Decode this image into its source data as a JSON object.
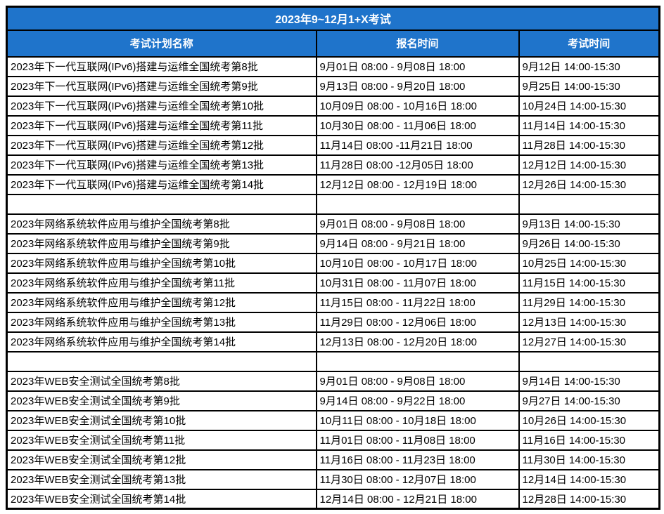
{
  "title": "2023年9~12月1+X考试",
  "columns": {
    "plan_name": "考试计划名称",
    "registration_time": "报名时间",
    "exam_time": "考试时间"
  },
  "colors": {
    "header_bg": "#1F74CB",
    "header_text": "#FFFFFF",
    "border": "#000000",
    "cell_bg": "#FFFFFF",
    "cell_text": "#000000"
  },
  "rows": [
    {
      "name": "2023年下一代互联网(IPv6)搭建与运维全国统考第8批",
      "reg": "9月01日 08:00 - 9月08日 18:00",
      "exam": "9月12日 14:00-15:30"
    },
    {
      "name": "2023年下一代互联网(IPv6)搭建与运维全国统考第9批",
      "reg": "9月13日 08:00 - 9月20日 18:00",
      "exam": "9月25日 14:00-15:30"
    },
    {
      "name": "2023年下一代互联网(IPv6)搭建与运维全国统考第10批",
      "reg": "10月09日 08:00 - 10月16日 18:00",
      "exam": "10月24日 14:00-15:30"
    },
    {
      "name": "2023年下一代互联网(IPv6)搭建与运维全国统考第11批",
      "reg": "10月30日 08:00 - 11月06日 18:00",
      "exam": "11月14日 14:00-15:30"
    },
    {
      "name": "2023年下一代互联网(IPv6)搭建与运维全国统考第12批",
      "reg": "11月14日 08:00 -11月21日 18:00",
      "exam": "11月28日 14:00-15:30"
    },
    {
      "name": "2023年下一代互联网(IPv6)搭建与运维全国统考第13批",
      "reg": "11月28日 08:00 -12月05日 18:00",
      "exam": "12月12日 14:00-15:30"
    },
    {
      "name": "2023年下一代互联网(IPv6)搭建与运维全国统考第14批",
      "reg": "12月12日 08:00 - 12月19日 18:00",
      "exam": "12月26日 14:00-15:30"
    },
    {
      "name": "",
      "reg": "",
      "exam": ""
    },
    {
      "name": "2023年网络系统软件应用与维护全国统考第8批",
      "reg": "9月01日 08:00 - 9月08日 18:00",
      "exam": "9月13日 14:00-15:30"
    },
    {
      "name": "2023年网络系统软件应用与维护全国统考第9批",
      "reg": "9月14日 08:00 - 9月21日 18:00",
      "exam": "9月26日 14:00-15:30"
    },
    {
      "name": "2023年网络系统软件应用与维护全国统考第10批",
      "reg": "10月10日 08:00 - 10月17日 18:00",
      "exam": "10月25日 14:00-15:30"
    },
    {
      "name": "2023年网络系统软件应用与维护全国统考第11批",
      "reg": "10月31日 08:00 - 11月07日 18:00",
      "exam": "11月15日 14:00-15:30"
    },
    {
      "name": "2023年网络系统软件应用与维护全国统考第12批",
      "reg": "11月15日 08:00 - 11月22日 18:00",
      "exam": "11月29日 14:00-15:30"
    },
    {
      "name": "2023年网络系统软件应用与维护全国统考第13批",
      "reg": "11月29日 08:00 - 12月06日 18:00",
      "exam": "12月13日 14:00-15:30"
    },
    {
      "name": "2023年网络系统软件应用与维护全国统考第14批",
      "reg": "12月13日 08:00 - 12月20日 18:00",
      "exam": "12月27日 14:00-15:30"
    },
    {
      "name": "",
      "reg": "",
      "exam": ""
    },
    {
      "name": "2023年WEB安全测试全国统考第8批",
      "reg": "9月01日 08:00 - 9月08日 18:00",
      "exam": "9月14日 14:00-15:30"
    },
    {
      "name": "2023年WEB安全测试全国统考第9批",
      "reg": "9月14日 08:00 - 9月22日 18:00",
      "exam": "9月27日 14:00-15:30"
    },
    {
      "name": "2023年WEB安全测试全国统考第10批",
      "reg": "10月11日 08:00 - 10月18日 18:00",
      "exam": "10月26日 14:00-15:30"
    },
    {
      "name": "2023年WEB安全测试全国统考第11批",
      "reg": "11月01日 08:00 - 11月08日 18:00",
      "exam": "11月16日 14:00-15:30"
    },
    {
      "name": "2023年WEB安全测试全国统考第12批",
      "reg": "11月16日 08:00 - 11月23日 18:00",
      "exam": "11月30日 14:00-15:30"
    },
    {
      "name": "2023年WEB安全测试全国统考第13批",
      "reg": "11月30日 08:00 - 12月07日 18:00",
      "exam": "12月14日 14:00-15:30"
    },
    {
      "name": "2023年WEB安全测试全国统考第14批",
      "reg": "12月14日 08:00 - 12月21日 18:00",
      "exam": "12月28日 14:00-15:30"
    }
  ]
}
